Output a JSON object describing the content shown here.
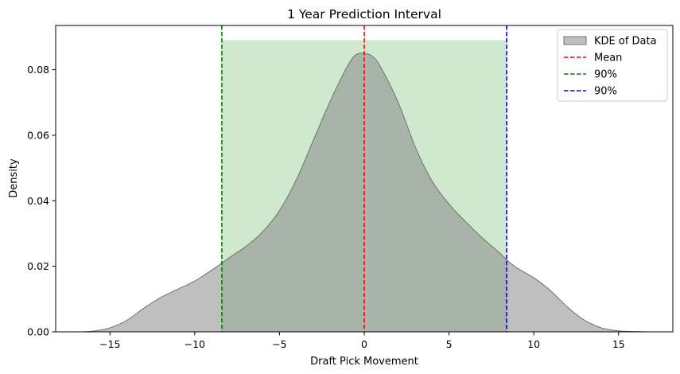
{
  "chart_data": {
    "type": "area",
    "title": "1 Year Prediction Interval",
    "xlabel": "Draft Pick Movement",
    "ylabel": "Density",
    "xlim": [
      -18.2,
      18.2
    ],
    "ylim": [
      0,
      0.0935
    ],
    "x_ticks": [
      -15,
      -10,
      -5,
      0,
      5,
      10,
      15
    ],
    "x_tick_labels": [
      "−15",
      "−10",
      "−5",
      "0",
      "5",
      "10",
      "15"
    ],
    "y_ticks": [
      0,
      0.02,
      0.04,
      0.06,
      0.08
    ],
    "y_tick_labels": [
      "0.00",
      "0.02",
      "0.04",
      "0.06",
      "0.08"
    ],
    "grid": false,
    "legend_position": "top-right",
    "series": [
      {
        "name": "KDE of Data",
        "kind": "density-area",
        "color": "#808080",
        "x": [
          -16.7,
          -16,
          -15,
          -14,
          -13,
          -12,
          -11,
          -10,
          -9,
          -8.4,
          -8,
          -7,
          -6,
          -5,
          -4,
          -3,
          -2,
          -1,
          -0.5,
          0,
          0.5,
          1,
          2,
          3,
          4,
          5,
          6,
          7,
          8,
          8.4,
          9,
          10,
          11,
          12,
          13,
          14,
          15,
          16,
          16.7
        ],
        "y": [
          0,
          0.0002,
          0.0012,
          0.0035,
          0.0072,
          0.0105,
          0.013,
          0.0155,
          0.0188,
          0.021,
          0.0225,
          0.026,
          0.0305,
          0.037,
          0.0465,
          0.0585,
          0.0705,
          0.081,
          0.0845,
          0.085,
          0.084,
          0.0805,
          0.07,
          0.0565,
          0.046,
          0.039,
          0.0335,
          0.0285,
          0.024,
          0.022,
          0.0195,
          0.0165,
          0.0125,
          0.0075,
          0.0035,
          0.0012,
          0.0003,
          0.0001,
          0
        ]
      },
      {
        "name": "Mean",
        "kind": "vline",
        "x": 0,
        "color": "#ff0000",
        "style": "dashed"
      },
      {
        "name": "90%",
        "kind": "vline",
        "x": -8.4,
        "color": "#008000",
        "style": "dashed"
      },
      {
        "name": "90%",
        "kind": "vline",
        "x": 8.4,
        "color": "#0000ff",
        "style": "dashed"
      }
    ],
    "interval_band": {
      "x_start": -8.4,
      "x_end": 8.4,
      "y_top": 0.089,
      "color": "#2ca02c",
      "opacity": 0.23
    },
    "legend": [
      {
        "label": "KDE of Data",
        "kind": "patch",
        "color": "#808080"
      },
      {
        "label": "Mean",
        "kind": "dashed-line",
        "color": "#ff0000"
      },
      {
        "label": "90%",
        "kind": "dashed-line",
        "color": "#008000"
      },
      {
        "label": "90%",
        "kind": "dashed-line",
        "color": "#0000ff"
      }
    ]
  }
}
